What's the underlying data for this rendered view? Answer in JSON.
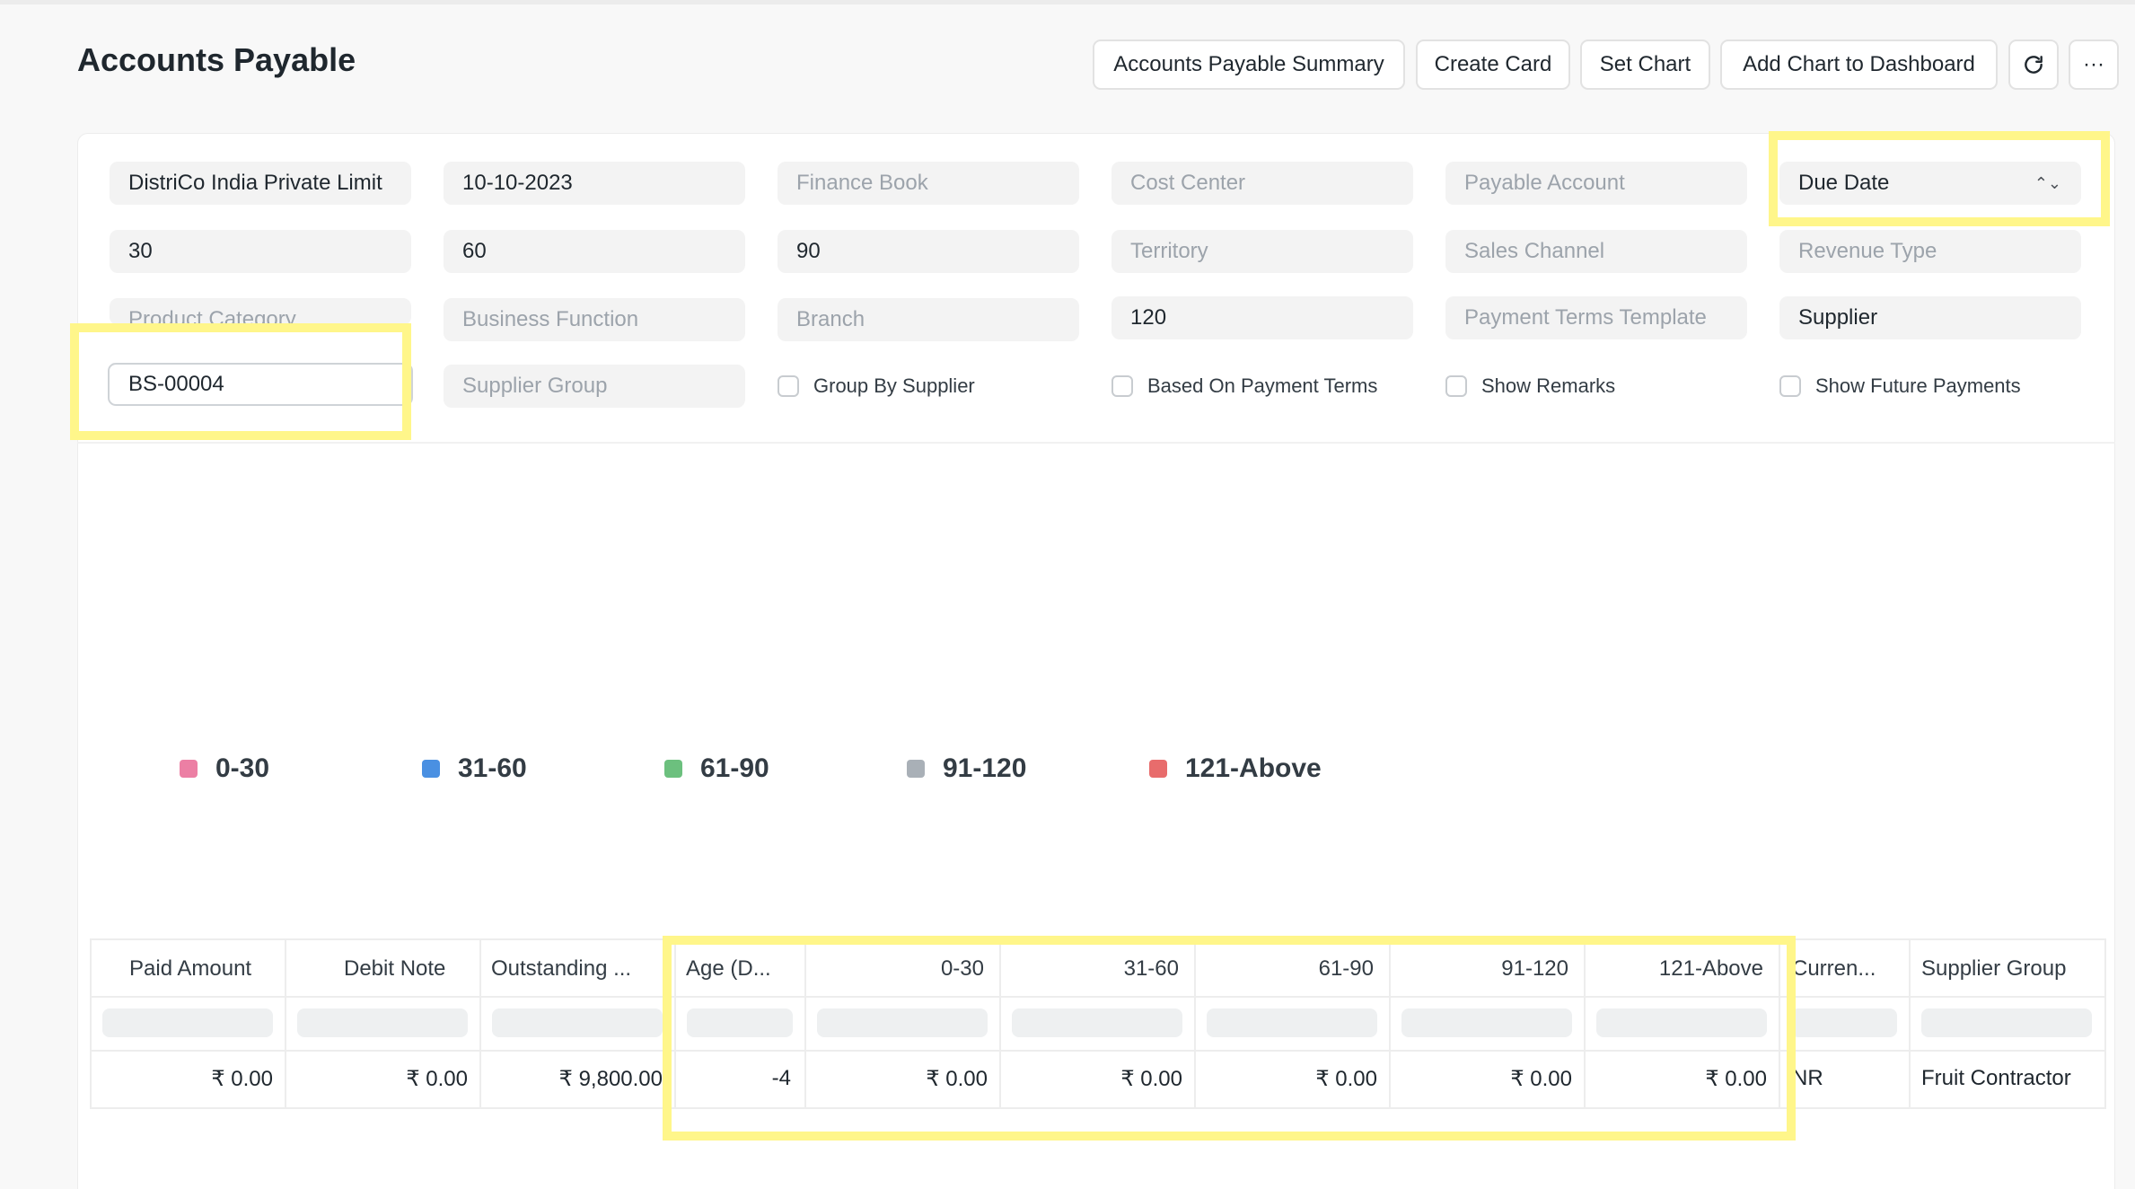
{
  "page": {
    "title": "Accounts Payable"
  },
  "toolbar": {
    "summary_label": "Accounts Payable Summary",
    "create_card_label": "Create Card",
    "set_chart_label": "Set Chart",
    "add_chart_label": "Add Chart to Dashboard",
    "more_label": "···"
  },
  "filters": {
    "company": "DistriCo India Private Limit",
    "date": "10-10-2023",
    "finance_book": "Finance Book",
    "cost_center": "Cost Center",
    "payable_account": "Payable Account",
    "ageing_based_on": "Due Date",
    "range1": "30",
    "range2": "60",
    "range3": "90",
    "territory": "Territory",
    "sales_channel": "Sales Channel",
    "revenue_type": "Revenue Type",
    "product_category": "Product Category",
    "business_function": "Business Function",
    "branch": "Branch",
    "range4": "120",
    "payment_terms_template": "Payment Terms Template",
    "party_type": "Supplier",
    "party": "BS-00004",
    "supplier_group": "Supplier Group",
    "group_by_supplier": "Group By Supplier",
    "based_on_payment_terms": "Based On Payment Terms",
    "show_remarks": "Show Remarks",
    "show_future_payments": "Show Future Payments"
  },
  "legend": {
    "items": [
      {
        "label": "0-30",
        "color": "#ec7fa4"
      },
      {
        "label": "31-60",
        "color": "#4a90e2"
      },
      {
        "label": "61-90",
        "color": "#6cc07e"
      },
      {
        "label": "91-120",
        "color": "#a9b0b7"
      },
      {
        "label": "121-Above",
        "color": "#e86c6c"
      }
    ]
  },
  "table": {
    "columns": [
      "Paid Amount",
      "Debit Note",
      "Outstanding ...",
      "Age (D...",
      "0-30",
      "31-60",
      "61-90",
      "91-120",
      "121-Above",
      "Curren...",
      "Supplier Group"
    ],
    "row": [
      "₹ 0.00",
      "₹ 0.00",
      "₹ 9,800.00",
      "-4",
      "₹ 0.00",
      "₹ 0.00",
      "₹ 0.00",
      "₹ 0.00",
      "₹ 0.00",
      "NR",
      "Fruit Contractor"
    ]
  },
  "highlight_color": "#fff68a"
}
